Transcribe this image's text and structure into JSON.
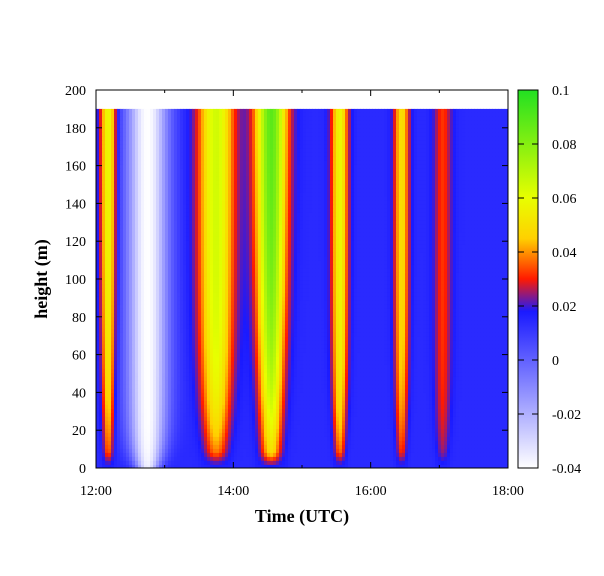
{
  "chart_data": {
    "type": "heatmap",
    "title": "",
    "xlabel": "Time (UTC)",
    "ylabel": "height (m)",
    "x_ticks": [
      "12:00",
      "14:00",
      "16:00",
      "18:00"
    ],
    "x_range_hours": [
      12,
      18
    ],
    "y_ticks": [
      0,
      20,
      40,
      60,
      80,
      100,
      120,
      140,
      160,
      180,
      200
    ],
    "ylim": [
      0,
      200
    ],
    "data_top_height": 190,
    "data_bottom_height": 0,
    "colorbar": {
      "ticks": [
        "0.1",
        "0.08",
        "0.06",
        "0.04",
        "0.02",
        "0",
        "-0.02",
        "-0.04"
      ],
      "range": [
        -0.04,
        0.1
      ],
      "color_stops": [
        {
          "value": -0.04,
          "color": "#ffffff"
        },
        {
          "value": 0.018,
          "color": "#1a1aff"
        },
        {
          "value": 0.03,
          "color": "#ff1a00"
        },
        {
          "value": 0.045,
          "color": "#ffd000"
        },
        {
          "value": 0.06,
          "color": "#e8ff00"
        },
        {
          "value": 0.1,
          "color": "#22e022"
        }
      ]
    },
    "features": [
      {
        "time": 12.18,
        "width": 0.11,
        "peak": 0.06,
        "height_scale": 35,
        "ground_tail": 0.16
      },
      {
        "time": 12.75,
        "width": 0.3,
        "peak": -0.04,
        "height_scale": 8,
        "ground_tail": 0.9
      },
      {
        "time": 13.75,
        "width": 0.26,
        "peak": 0.065,
        "height_scale": 28,
        "ground_tail": 0.1
      },
      {
        "time": 14.55,
        "width": 0.24,
        "peak": 0.09,
        "height_scale": 55,
        "ground_tail": 0.22
      },
      {
        "time": 15.55,
        "width": 0.12,
        "peak": 0.058,
        "height_scale": 26,
        "ground_tail": 0.15
      },
      {
        "time": 16.45,
        "width": 0.11,
        "peak": 0.05,
        "height_scale": 30,
        "ground_tail": 0.14
      },
      {
        "time": 17.05,
        "width": 0.13,
        "peak": 0.032,
        "height_scale": 20,
        "ground_tail": 0.18
      }
    ],
    "background_value": 0.014
  }
}
